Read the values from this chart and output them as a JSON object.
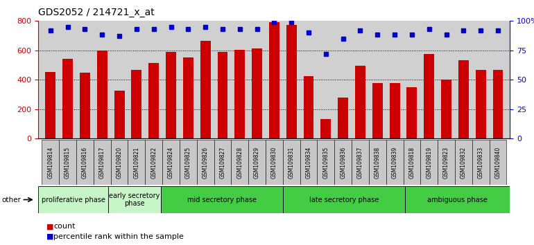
{
  "title": "GDS2052 / 214721_x_at",
  "samples": [
    "GSM109814",
    "GSM109815",
    "GSM109816",
    "GSM109817",
    "GSM109820",
    "GSM109821",
    "GSM109822",
    "GSM109824",
    "GSM109825",
    "GSM109826",
    "GSM109827",
    "GSM109828",
    "GSM109829",
    "GSM109830",
    "GSM109831",
    "GSM109834",
    "GSM109835",
    "GSM109836",
    "GSM109837",
    "GSM109838",
    "GSM109839",
    "GSM109818",
    "GSM109819",
    "GSM109823",
    "GSM109832",
    "GSM109833",
    "GSM109840"
  ],
  "counts": [
    450,
    540,
    445,
    600,
    325,
    465,
    515,
    590,
    550,
    665,
    590,
    605,
    610,
    790,
    770,
    425,
    130,
    280,
    495,
    375,
    375,
    350,
    575,
    400,
    530,
    465,
    465
  ],
  "percentile_ranks": [
    92,
    95,
    93,
    88,
    87,
    93,
    93,
    95,
    93,
    95,
    93,
    93,
    93,
    99,
    99,
    90,
    72,
    85,
    92,
    88,
    88,
    88,
    93,
    88,
    92,
    92,
    92
  ],
  "bar_color": "#cc0000",
  "dot_color": "#0000cc",
  "yticks_left": [
    0,
    200,
    400,
    600,
    800
  ],
  "yticks_right": [
    0,
    25,
    50,
    75,
    100
  ],
  "grid_lines": [
    200,
    400,
    600
  ],
  "bg_color": "#d0d0d0",
  "tick_bg_color": "#c8c8c8",
  "phase_sections": [
    {
      "label": "proliferative phase",
      "start": 0,
      "end": 4,
      "color": "#c8f5c8"
    },
    {
      "label": "early secretory\nphase",
      "start": 4,
      "end": 7,
      "color": "#c8f5c8"
    },
    {
      "label": "mid secretory phase",
      "start": 7,
      "end": 14,
      "color": "#44cc44"
    },
    {
      "label": "late secretory phase",
      "start": 14,
      "end": 21,
      "color": "#44cc44"
    },
    {
      "label": "ambiguous phase",
      "start": 21,
      "end": 27,
      "color": "#44cc44"
    }
  ]
}
